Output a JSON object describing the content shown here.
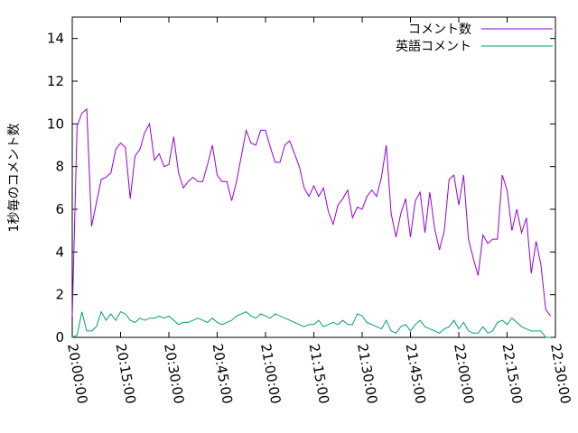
{
  "chart_data": {
    "type": "line",
    "title": "",
    "xlabel": "",
    "ylabel": "1秒毎のコメント数",
    "x_range": [
      "20:00:00",
      "22:30:00"
    ],
    "x_ticks": [
      "20:00:00",
      "20:15:00",
      "20:30:00",
      "20:45:00",
      "21:00:00",
      "21:15:00",
      "21:30:00",
      "21:45:00",
      "22:00:00",
      "22:15:00",
      "22:30:00"
    ],
    "ylim": [
      0,
      15
    ],
    "y_ticks": [
      "0",
      "2",
      "4",
      "6",
      "8",
      "10",
      "12",
      "14"
    ],
    "grid": false,
    "legend_position": "top-right",
    "x_sample_interval": "1 minute",
    "series": [
      {
        "name": "コメント数",
        "color": "#9400d3",
        "values": [
          1.0,
          9.9,
          10.5,
          10.7,
          5.2,
          6.3,
          7.4,
          7.5,
          7.7,
          8.8,
          9.1,
          8.9,
          6.5,
          8.5,
          8.8,
          9.6,
          10.0,
          8.3,
          8.6,
          8.0,
          8.1,
          9.4,
          7.7,
          7.0,
          7.3,
          7.5,
          7.3,
          7.3,
          8.1,
          9.0,
          7.6,
          7.3,
          7.3,
          6.4,
          7.3,
          8.5,
          9.7,
          9.1,
          9.0,
          9.7,
          9.7,
          8.9,
          8.2,
          8.2,
          9.0,
          9.2,
          8.6,
          8.0,
          7.0,
          6.6,
          7.1,
          6.6,
          7.0,
          5.9,
          5.3,
          6.2,
          6.5,
          6.9,
          5.6,
          6.1,
          6.0,
          6.6,
          6.9,
          6.6,
          7.5,
          9.0,
          5.8,
          4.7,
          5.8,
          6.5,
          4.7,
          6.4,
          6.8,
          4.9,
          6.8,
          5.1,
          4.1,
          5.0,
          7.4,
          7.6,
          6.2,
          7.6,
          4.6,
          3.7,
          2.9,
          4.8,
          4.4,
          4.6,
          4.6,
          7.6,
          6.9,
          5.0,
          6.0,
          4.9,
          5.6,
          3.0,
          4.5,
          3.4,
          1.3,
          1.0
        ]
      },
      {
        "name": "英語コメント",
        "color": "#009e73",
        "values": [
          0.0,
          0.1,
          1.2,
          0.3,
          0.3,
          0.5,
          1.2,
          0.8,
          1.1,
          0.8,
          1.2,
          1.1,
          0.8,
          0.7,
          0.9,
          0.8,
          0.9,
          0.9,
          1.0,
          0.9,
          1.0,
          0.8,
          0.6,
          0.7,
          0.7,
          0.8,
          0.9,
          0.8,
          0.7,
          0.9,
          0.7,
          0.6,
          0.7,
          0.8,
          1.0,
          1.1,
          1.2,
          1.0,
          0.9,
          1.1,
          1.0,
          0.9,
          1.1,
          1.0,
          0.9,
          0.8,
          0.7,
          0.6,
          0.5,
          0.6,
          0.6,
          0.8,
          0.5,
          0.6,
          0.7,
          0.6,
          0.8,
          0.6,
          0.6,
          1.1,
          1.0,
          0.7,
          0.6,
          0.5,
          0.4,
          0.8,
          0.3,
          0.2,
          0.5,
          0.6,
          0.3,
          0.6,
          0.8,
          0.5,
          0.4,
          0.3,
          0.2,
          0.4,
          0.5,
          0.8,
          0.4,
          0.7,
          0.3,
          0.2,
          0.2,
          0.5,
          0.2,
          0.3,
          0.7,
          0.8,
          0.6,
          0.9,
          0.7,
          0.5,
          0.4,
          0.3,
          0.3,
          0.3,
          0.0,
          0.0
        ]
      }
    ]
  }
}
